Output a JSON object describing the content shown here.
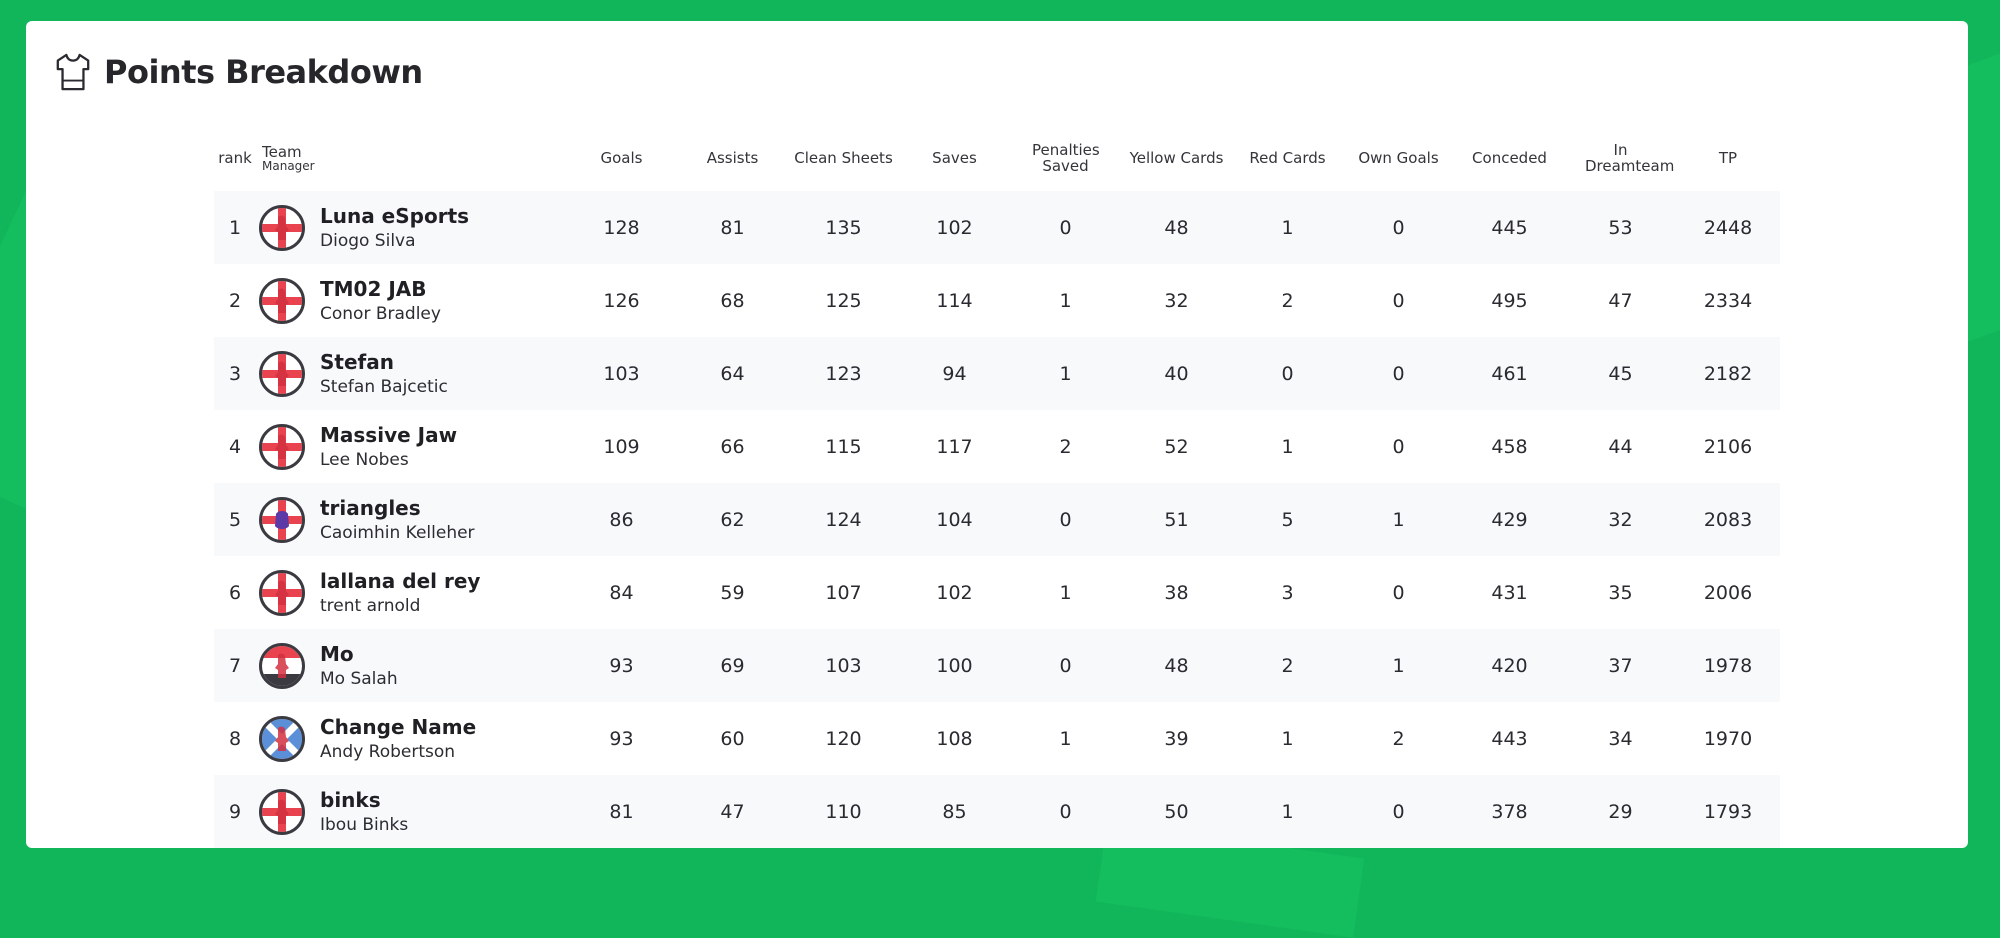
{
  "page": {
    "title": "Points Breakdown",
    "title_icon": "shirt-icon"
  },
  "colors": {
    "background": "#12b65a",
    "card": "#ffffff",
    "row_alt": "#f7f9fb",
    "badge_red": "#e8434f",
    "badge_blue": "#5b8fd8",
    "badge_dark": "#3a3a40"
  },
  "table": {
    "headers": {
      "rank": "rank",
      "team": "Team",
      "manager": "Manager",
      "goals": "Goals",
      "assists": "Assists",
      "clean_sheets": "Clean Sheets",
      "saves": "Saves",
      "penalties_saved": "Penalties Saved",
      "yellow_cards": "Yellow Cards",
      "red_cards": "Red Cards",
      "own_goals": "Own Goals",
      "conceded": "Conceded",
      "in_dreamteam": "In Dreamteam",
      "tp": "TP"
    },
    "rows": [
      {
        "rank": "1",
        "team": "Luna eSports",
        "manager": "Diogo Silva",
        "badge": "england",
        "goals": "128",
        "assists": "81",
        "clean_sheets": "135",
        "saves": "102",
        "penalties_saved": "0",
        "yellow_cards": "48",
        "red_cards": "1",
        "own_goals": "0",
        "conceded": "445",
        "in_dreamteam": "53",
        "tp": "2448"
      },
      {
        "rank": "2",
        "team": "TM02 JAB",
        "manager": "Conor Bradley",
        "badge": "england",
        "goals": "126",
        "assists": "68",
        "clean_sheets": "125",
        "saves": "114",
        "penalties_saved": "1",
        "yellow_cards": "32",
        "red_cards": "2",
        "own_goals": "0",
        "conceded": "495",
        "in_dreamteam": "47",
        "tp": "2334"
      },
      {
        "rank": "3",
        "team": "Stefan",
        "manager": "Stefan Bajcetic",
        "badge": "england",
        "goals": "103",
        "assists": "64",
        "clean_sheets": "123",
        "saves": "94",
        "penalties_saved": "1",
        "yellow_cards": "40",
        "red_cards": "0",
        "own_goals": "0",
        "conceded": "461",
        "in_dreamteam": "45",
        "tp": "2182"
      },
      {
        "rank": "4",
        "team": "Massive Jaw",
        "manager": "Lee Nobes",
        "badge": "england",
        "goals": "109",
        "assists": "66",
        "clean_sheets": "115",
        "saves": "117",
        "penalties_saved": "2",
        "yellow_cards": "52",
        "red_cards": "1",
        "own_goals": "0",
        "conceded": "458",
        "in_dreamteam": "44",
        "tp": "2106"
      },
      {
        "rank": "5",
        "team": "triangles",
        "manager": "Caoimhin Kelleher",
        "badge": "england-lion",
        "goals": "86",
        "assists": "62",
        "clean_sheets": "124",
        "saves": "104",
        "penalties_saved": "0",
        "yellow_cards": "51",
        "red_cards": "5",
        "own_goals": "1",
        "conceded": "429",
        "in_dreamteam": "32",
        "tp": "2083"
      },
      {
        "rank": "6",
        "team": "lallana del rey",
        "manager": "trent arnold",
        "badge": "england",
        "goals": "84",
        "assists": "59",
        "clean_sheets": "107",
        "saves": "102",
        "penalties_saved": "1",
        "yellow_cards": "38",
        "red_cards": "3",
        "own_goals": "0",
        "conceded": "431",
        "in_dreamteam": "35",
        "tp": "2006"
      },
      {
        "rank": "7",
        "team": "Mo",
        "manager": "Mo Salah",
        "badge": "egypt",
        "goals": "93",
        "assists": "69",
        "clean_sheets": "103",
        "saves": "100",
        "penalties_saved": "0",
        "yellow_cards": "48",
        "red_cards": "2",
        "own_goals": "1",
        "conceded": "420",
        "in_dreamteam": "37",
        "tp": "1978"
      },
      {
        "rank": "8",
        "team": "Change Name",
        "manager": "Andy Robertson",
        "badge": "scotland",
        "goals": "93",
        "assists": "60",
        "clean_sheets": "120",
        "saves": "108",
        "penalties_saved": "1",
        "yellow_cards": "39",
        "red_cards": "1",
        "own_goals": "2",
        "conceded": "443",
        "in_dreamteam": "34",
        "tp": "1970"
      },
      {
        "rank": "9",
        "team": "binks",
        "manager": "Ibou Binks",
        "badge": "england",
        "goals": "81",
        "assists": "47",
        "clean_sheets": "110",
        "saves": "85",
        "penalties_saved": "0",
        "yellow_cards": "50",
        "red_cards": "1",
        "own_goals": "0",
        "conceded": "378",
        "in_dreamteam": "29",
        "tp": "1793"
      }
    ]
  }
}
